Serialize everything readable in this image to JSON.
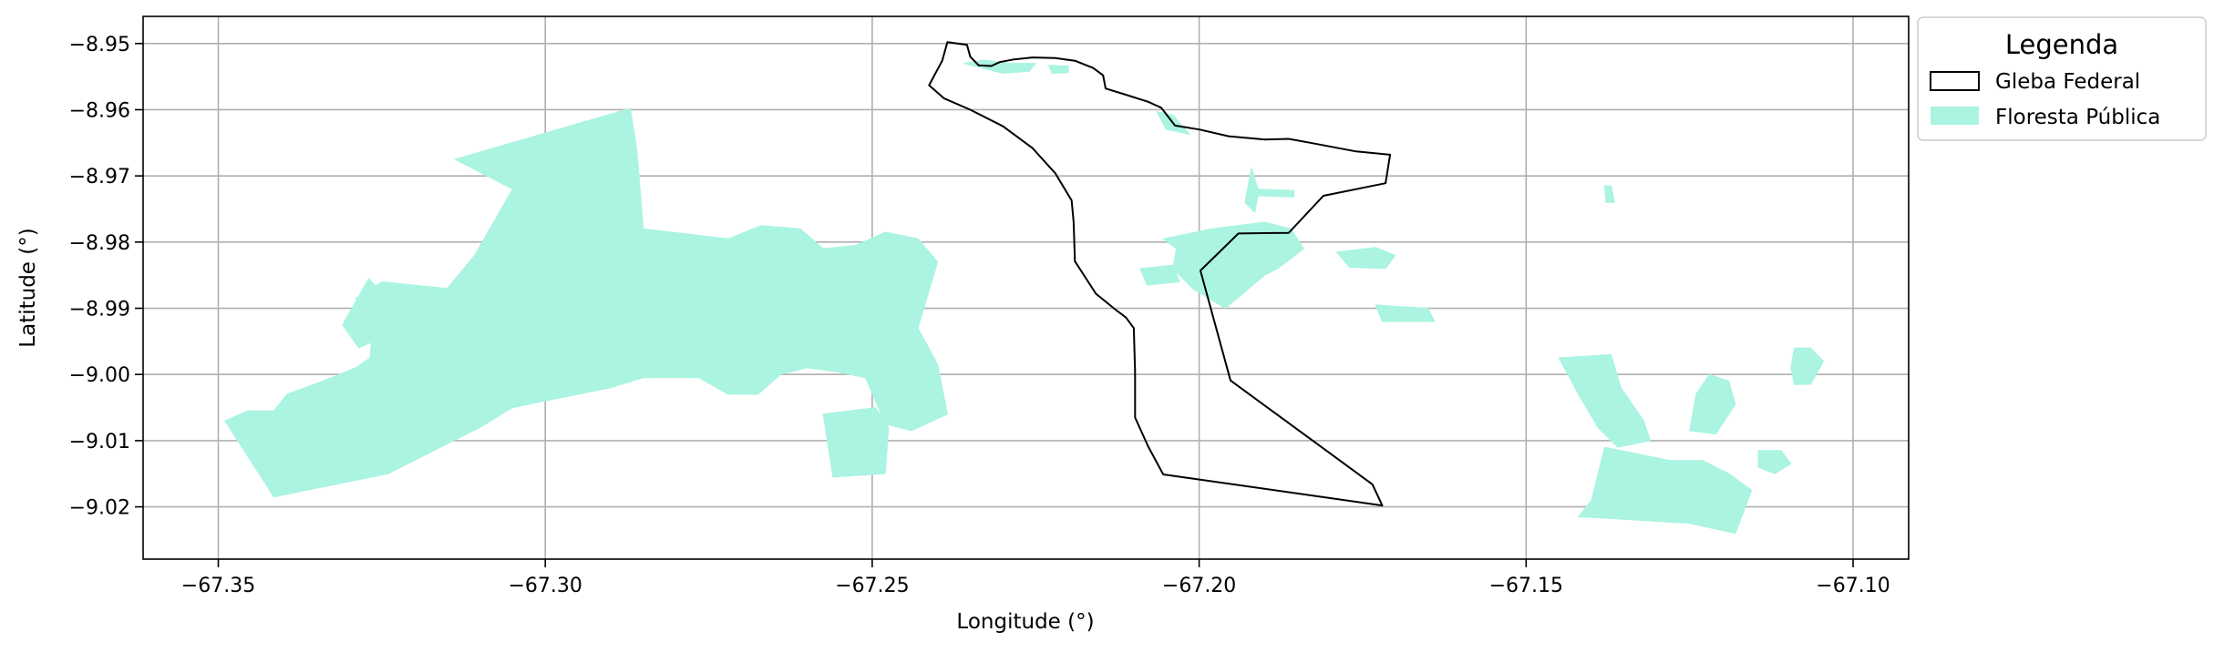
{
  "map": {
    "xlabel": "Longitude (°)",
    "ylabel": "Latitude (°)",
    "xlim": [
      -67.3615,
      -67.0915
    ],
    "ylim": [
      -9.0279,
      -8.9459
    ],
    "x_ticks": [
      {
        "value": -67.35,
        "label": "−67.35"
      },
      {
        "value": -67.3,
        "label": "−67.30"
      },
      {
        "value": -67.25,
        "label": "−67.25"
      },
      {
        "value": -67.2,
        "label": "−67.20"
      },
      {
        "value": -67.15,
        "label": "−67.15"
      },
      {
        "value": -67.1,
        "label": "−67.10"
      }
    ],
    "y_ticks": [
      {
        "value": -8.95,
        "label": "−8.95"
      },
      {
        "value": -8.96,
        "label": "−8.96"
      },
      {
        "value": -8.97,
        "label": "−8.97"
      },
      {
        "value": -8.98,
        "label": "−8.98"
      },
      {
        "value": -8.99,
        "label": "−8.99"
      },
      {
        "value": -9.0,
        "label": "−9.00"
      },
      {
        "value": -9.01,
        "label": "−9.01"
      },
      {
        "value": -9.02,
        "label": "−9.02"
      }
    ],
    "grid": true,
    "legend": {
      "title": "Legenda",
      "placement": "outside-top-right",
      "items": [
        {
          "label": "Gleba Federal",
          "style": "outline",
          "color": "#000000"
        },
        {
          "label": "Floresta Pública",
          "style": "fill",
          "color": "#aaf4e1"
        }
      ]
    },
    "colors": {
      "forest": "#aaf4e1",
      "boundary": "#000000",
      "grid": "#b0b0b0"
    },
    "gleba_federal": [
      [
        -67.2413,
        -8.9563
      ],
      [
        -67.2393,
        -8.9526
      ],
      [
        -67.2385,
        -8.9498
      ],
      [
        -67.2355,
        -8.9502
      ],
      [
        -67.235,
        -8.952
      ],
      [
        -67.2337,
        -8.9533
      ],
      [
        -67.2318,
        -8.9534
      ],
      [
        -67.2305,
        -8.9528
      ],
      [
        -67.2283,
        -8.9524
      ],
      [
        -67.2255,
        -8.9521
      ],
      [
        -67.222,
        -8.9522
      ],
      [
        -67.219,
        -8.9526
      ],
      [
        -67.2162,
        -8.9537
      ],
      [
        -67.2147,
        -8.9548
      ],
      [
        -67.2143,
        -8.9568
      ],
      [
        -67.211,
        -8.9578
      ],
      [
        -67.2078,
        -8.9588
      ],
      [
        -67.2058,
        -8.9597
      ],
      [
        -67.2037,
        -8.9624
      ],
      [
        -67.1999,
        -8.963
      ],
      [
        -67.1955,
        -8.964
      ],
      [
        -67.1899,
        -8.9645
      ],
      [
        -67.1863,
        -8.9644
      ],
      [
        -67.183,
        -8.965
      ],
      [
        -67.176,
        -8.9663
      ],
      [
        -67.1708,
        -8.9668
      ],
      [
        -67.1715,
        -8.9711
      ],
      [
        -67.181,
        -8.973
      ],
      [
        -67.1863,
        -8.9786
      ],
      [
        -67.194,
        -8.9787
      ],
      [
        -67.1998,
        -8.9843
      ],
      [
        -67.1952,
        -9.0009
      ],
      [
        -67.1735,
        -9.0166
      ],
      [
        -67.172,
        -9.0198
      ],
      [
        -67.2055,
        -9.0151
      ],
      [
        -67.2078,
        -9.0109
      ],
      [
        -67.2098,
        -9.0065
      ],
      [
        -67.2098,
        -8.9995
      ],
      [
        -67.21,
        -8.993
      ],
      [
        -67.2112,
        -8.9914
      ],
      [
        -67.2128,
        -8.9902
      ],
      [
        -67.2158,
        -8.9878
      ],
      [
        -67.219,
        -8.9829
      ],
      [
        -67.2192,
        -8.977
      ],
      [
        -67.2195,
        -8.9737
      ],
      [
        -67.222,
        -8.9696
      ],
      [
        -67.2255,
        -8.9658
      ],
      [
        -67.23,
        -8.9625
      ],
      [
        -67.235,
        -8.96
      ],
      [
        -67.239,
        -8.9583
      ],
      [
        -67.2413,
        -8.9563
      ]
    ],
    "floresta_publica": [
      [
        [
          -67.3415,
          -9.0055
        ],
        [
          -67.3395,
          -9.003
        ],
        [
          -67.334,
          -9.001
        ],
        [
          -67.329,
          -8.999
        ],
        [
          -67.3268,
          -8.9975
        ],
        [
          -67.3262,
          -8.9915
        ],
        [
          -67.329,
          -8.9885
        ],
        [
          -67.325,
          -8.986
        ],
        [
          -67.315,
          -8.987
        ],
        [
          -67.3108,
          -8.982
        ],
        [
          -67.305,
          -8.972
        ],
        [
          -67.3138,
          -8.9675
        ],
        [
          -67.287,
          -8.9598
        ],
        [
          -67.286,
          -8.966
        ],
        [
          -67.285,
          -8.978
        ],
        [
          -67.272,
          -8.9795
        ],
        [
          -67.267,
          -8.9775
        ],
        [
          -67.261,
          -8.978
        ],
        [
          -67.2575,
          -8.981
        ],
        [
          -67.2525,
          -8.9805
        ],
        [
          -67.248,
          -8.9785
        ],
        [
          -67.243,
          -8.9795
        ],
        [
          -67.24,
          -8.983
        ],
        [
          -67.243,
          -8.993
        ],
        [
          -67.24,
          -8.9985
        ],
        [
          -67.2385,
          -9.006
        ],
        [
          -67.244,
          -9.0085
        ],
        [
          -67.248,
          -9.0075
        ],
        [
          -67.251,
          -9.0005
        ],
        [
          -67.256,
          -8.9995
        ],
        [
          -67.26,
          -8.999
        ],
        [
          -67.264,
          -9.0
        ],
        [
          -67.2675,
          -9.003
        ],
        [
          -67.272,
          -9.003
        ],
        [
          -67.2765,
          -9.0005
        ],
        [
          -67.281,
          -9.0005
        ],
        [
          -67.285,
          -9.0005
        ],
        [
          -67.29,
          -9.002
        ],
        [
          -67.295,
          -9.003
        ],
        [
          -67.3,
          -9.004
        ],
        [
          -67.305,
          -9.005
        ],
        [
          -67.31,
          -9.008
        ],
        [
          -67.317,
          -9.0115
        ],
        [
          -67.324,
          -9.015
        ],
        [
          -67.3415,
          -9.0185
        ],
        [
          -67.349,
          -9.007
        ],
        [
          -67.3455,
          -9.0055
        ],
        [
          -67.3415,
          -9.0055
        ]
      ],
      [
        [
          -67.327,
          -8.9855
        ],
        [
          -67.323,
          -8.99
        ],
        [
          -67.324,
          -8.994
        ],
        [
          -67.3285,
          -8.996
        ],
        [
          -67.331,
          -8.9925
        ],
        [
          -67.327,
          -8.9855
        ]
      ],
      [
        [
          -67.236,
          -8.953
        ],
        [
          -67.233,
          -8.9525
        ],
        [
          -67.229,
          -8.953
        ],
        [
          -67.225,
          -8.953
        ],
        [
          -67.226,
          -8.9542
        ],
        [
          -67.23,
          -8.9545
        ],
        [
          -67.236,
          -8.953
        ]
      ],
      [
        [
          -67.223,
          -8.9533
        ],
        [
          -67.22,
          -8.9534
        ],
        [
          -67.22,
          -8.9544
        ],
        [
          -67.2225,
          -8.9545
        ],
        [
          -67.223,
          -8.9533
        ]
      ],
      [
        [
          -67.2065,
          -8.9603
        ],
        [
          -67.204,
          -8.9608
        ],
        [
          -67.2015,
          -8.9637
        ],
        [
          -67.205,
          -8.963
        ],
        [
          -67.2065,
          -8.9603
        ]
      ],
      [
        [
          -67.192,
          -8.9688
        ],
        [
          -67.191,
          -8.972
        ],
        [
          -67.1855,
          -8.9722
        ],
        [
          -67.1855,
          -8.9732
        ],
        [
          -67.191,
          -8.973
        ],
        [
          -67.1915,
          -8.9755
        ],
        [
          -67.193,
          -8.974
        ],
        [
          -67.192,
          -8.9688
        ]
      ],
      [
        [
          -67.2055,
          -8.9795
        ],
        [
          -67.198,
          -8.978
        ],
        [
          -67.19,
          -8.977
        ],
        [
          -67.186,
          -8.978
        ],
        [
          -67.185,
          -8.9795
        ],
        [
          -67.184,
          -8.981
        ],
        [
          -67.188,
          -8.984
        ],
        [
          -67.19,
          -8.985
        ],
        [
          -67.196,
          -8.99
        ],
        [
          -67.201,
          -8.987
        ],
        [
          -67.204,
          -8.984
        ],
        [
          -67.2035,
          -8.981
        ],
        [
          -67.2055,
          -8.9795
        ]
      ],
      [
        [
          -67.209,
          -8.984
        ],
        [
          -67.204,
          -8.9835
        ],
        [
          -67.203,
          -8.986
        ],
        [
          -67.208,
          -8.9865
        ],
        [
          -67.209,
          -8.984
        ]
      ],
      [
        [
          -67.179,
          -8.9815
        ],
        [
          -67.173,
          -8.9808
        ],
        [
          -67.17,
          -8.982
        ],
        [
          -67.1715,
          -8.984
        ],
        [
          -67.177,
          -8.9838
        ],
        [
          -67.179,
          -8.9815
        ]
      ],
      [
        [
          -67.173,
          -8.9895
        ],
        [
          -67.165,
          -8.99
        ],
        [
          -67.164,
          -8.992
        ],
        [
          -67.172,
          -8.992
        ],
        [
          -67.173,
          -8.9895
        ]
      ],
      [
        [
          -67.2575,
          -9.006
        ],
        [
          -67.2495,
          -9.005
        ],
        [
          -67.2475,
          -9.008
        ],
        [
          -67.248,
          -9.015
        ],
        [
          -67.256,
          -9.0155
        ],
        [
          -67.2575,
          -9.006
        ]
      ],
      [
        [
          -67.145,
          -8.9975
        ],
        [
          -67.137,
          -8.997
        ],
        [
          -67.1355,
          -9.002
        ],
        [
          -67.132,
          -9.007
        ],
        [
          -67.131,
          -9.01
        ],
        [
          -67.136,
          -9.011
        ],
        [
          -67.139,
          -9.008
        ],
        [
          -67.142,
          -9.003
        ],
        [
          -67.145,
          -8.9975
        ]
      ],
      [
        [
          -67.138,
          -9.011
        ],
        [
          -67.133,
          -9.012
        ],
        [
          -67.128,
          -9.013
        ],
        [
          -67.123,
          -9.013
        ],
        [
          -67.119,
          -9.015
        ],
        [
          -67.1155,
          -9.0175
        ],
        [
          -67.118,
          -9.024
        ],
        [
          -67.125,
          -9.0225
        ],
        [
          -67.133,
          -9.022
        ],
        [
          -67.142,
          -9.0215
        ],
        [
          -67.14,
          -9.019
        ],
        [
          -67.138,
          -9.011
        ]
      ],
      [
        [
          -67.122,
          -9.0
        ],
        [
          -67.119,
          -9.001
        ],
        [
          -67.118,
          -9.0045
        ],
        [
          -67.121,
          -9.009
        ],
        [
          -67.125,
          -9.0085
        ],
        [
          -67.124,
          -9.003
        ],
        [
          -67.122,
          -9.0
        ]
      ],
      [
        [
          -67.109,
          -8.996
        ],
        [
          -67.1065,
          -8.996
        ],
        [
          -67.1045,
          -8.998
        ],
        [
          -67.1065,
          -9.0015
        ],
        [
          -67.109,
          -9.0015
        ],
        [
          -67.1095,
          -8.999
        ],
        [
          -67.109,
          -8.996
        ]
      ],
      [
        [
          -67.1145,
          -9.0115
        ],
        [
          -67.111,
          -9.0115
        ],
        [
          -67.1095,
          -9.0135
        ],
        [
          -67.112,
          -9.015
        ],
        [
          -67.1145,
          -9.014
        ],
        [
          -67.1145,
          -9.0115
        ]
      ],
      [
        [
          -67.138,
          -8.9715
        ],
        [
          -67.137,
          -8.9715
        ],
        [
          -67.1365,
          -8.974
        ],
        [
          -67.1378,
          -8.974
        ],
        [
          -67.138,
          -8.9715
        ]
      ]
    ]
  }
}
